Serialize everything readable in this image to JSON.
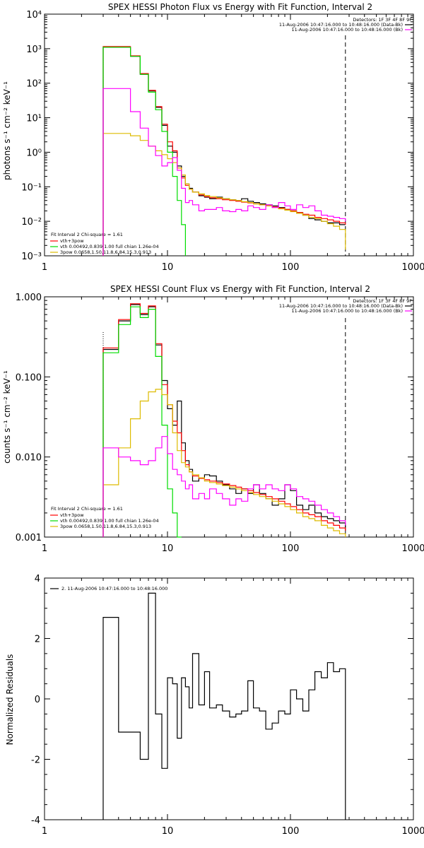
{
  "colors": {
    "data": "#000000",
    "total": "#ff0000",
    "thermal": "#00dd00",
    "power": "#ddbb00",
    "background": "#ff00ff"
  },
  "chart_data": [
    {
      "type": "line",
      "title": "SPEX HESSI Photon Flux vs Energy with Fit Function, Interval 2",
      "xlabel": "",
      "ylabel": "photons s⁻¹ cm⁻² keV⁻¹",
      "xscale": "log",
      "yscale": "log",
      "xlim": [
        1,
        1000
      ],
      "ylim": [
        0.001,
        10000
      ],
      "xticks": [
        "1",
        "10",
        "100",
        "1000"
      ],
      "yticks": [
        "10⁻³",
        "10⁻²",
        "10⁻¹",
        "10⁰",
        "10¹",
        "10²",
        "10³",
        "10⁴"
      ],
      "header": [
        "Detectors: 1F 3F 4F 8F 9F",
        "11-Aug-2006 10:47:16.000 to 10:48:16.000 (Data-Bk)",
        "11-Aug-2006 10:47:16.000 to 10:48:16.000 (Bk)"
      ],
      "legend": [
        "Fit Interval 2   Chi-square = 1.61",
        "vth+3pow",
        "vth 0.00492,0.839,1.00   full chian 1.26e-04",
        "3pow 0.0658,1.50,11.8,6.84,15.3,0.913"
      ],
      "vlines": [
        3,
        280
      ],
      "series": [
        {
          "name": "11-Aug-2006 10:47:16.000 to 10:48:16.000 (Data-Bk)",
          "color": "#000000",
          "step": true,
          "x": [
            3,
            4,
            5,
            6,
            7,
            8,
            9,
            10,
            11,
            12,
            13,
            14,
            15,
            16,
            18,
            20,
            22,
            25,
            28,
            32,
            36,
            40,
            45,
            50,
            56,
            63,
            71,
            80,
            90,
            100,
            112,
            126,
            141,
            158,
            178,
            200,
            224,
            251,
            280
          ],
          "y": [
            1100,
            1100,
            600,
            180,
            60,
            20,
            6,
            1.5,
            1.0,
            0.4,
            0.2,
            0.12,
            0.09,
            0.07,
            0.055,
            0.05,
            0.045,
            0.05,
            0.045,
            0.042,
            0.04,
            0.045,
            0.038,
            0.035,
            0.032,
            0.03,
            0.028,
            0.025,
            0.022,
            0.02,
            0.018,
            0.015,
            0.012,
            0.011,
            0.01,
            0.009,
            0.009,
            0.008,
            0.008
          ]
        },
        {
          "name": "vth+3pow",
          "color": "#ff0000",
          "step": true,
          "x": [
            3,
            4,
            5,
            6,
            7,
            8,
            9,
            10,
            11,
            12,
            13,
            14,
            15,
            16,
            18,
            20,
            22,
            25,
            28,
            32,
            36,
            40,
            45,
            50,
            56,
            63,
            71,
            80,
            90,
            100,
            112,
            126,
            141,
            158,
            178,
            200,
            224,
            251,
            280
          ],
          "y": [
            1150,
            1150,
            620,
            190,
            62,
            21,
            6.5,
            2.0,
            1.1,
            0.35,
            0.18,
            0.11,
            0.085,
            0.07,
            0.058,
            0.052,
            0.048,
            0.045,
            0.042,
            0.04,
            0.038,
            0.036,
            0.034,
            0.032,
            0.03,
            0.028,
            0.026,
            0.024,
            0.022,
            0.02,
            0.018,
            0.016,
            0.015,
            0.013,
            0.012,
            0.011,
            0.01,
            0.009,
            0.008
          ]
        },
        {
          "name": "vth",
          "color": "#00dd00",
          "step": true,
          "x": [
            3,
            4,
            5,
            6,
            7,
            8,
            9,
            10,
            11,
            12,
            13,
            14
          ],
          "y": [
            1100,
            1100,
            600,
            180,
            55,
            17,
            4,
            1.0,
            0.2,
            0.04,
            0.008,
            0.001
          ]
        },
        {
          "name": "3pow",
          "color": "#ddbb00",
          "step": true,
          "x": [
            3,
            4,
            5,
            6,
            7,
            8,
            9,
            10,
            11,
            12,
            13,
            14,
            15,
            16,
            18,
            20,
            22,
            25,
            28,
            32,
            36,
            40,
            45,
            50,
            56,
            63,
            71,
            80,
            90,
            100,
            112,
            126,
            141,
            158,
            178,
            200,
            224,
            251,
            280
          ],
          "y": [
            3.5,
            3.5,
            3.0,
            2.2,
            1.5,
            1.1,
            0.85,
            0.65,
            0.5,
            0.35,
            0.22,
            0.12,
            0.085,
            0.07,
            0.062,
            0.056,
            0.052,
            0.048,
            0.045,
            0.042,
            0.04,
            0.037,
            0.035,
            0.032,
            0.03,
            0.028,
            0.025,
            0.023,
            0.021,
            0.019,
            0.017,
            0.015,
            0.013,
            0.012,
            0.01,
            0.0085,
            0.0072,
            0.0058,
            0.0015
          ]
        },
        {
          "name": "11-Aug-2006 10:47:16.000 to 10:48:16.000 (Bk)",
          "color": "#ff00ff",
          "step": true,
          "x": [
            3,
            4,
            5,
            6,
            7,
            8,
            9,
            10,
            11,
            12,
            13,
            14,
            15,
            16,
            18,
            20,
            22,
            25,
            28,
            32,
            36,
            40,
            45,
            50,
            56,
            63,
            71,
            80,
            90,
            100,
            112,
            126,
            141,
            158,
            178,
            200,
            224,
            251,
            280
          ],
          "y": [
            70,
            70,
            15,
            5,
            1.5,
            0.8,
            0.4,
            0.5,
            0.7,
            0.3,
            0.09,
            0.035,
            0.04,
            0.03,
            0.02,
            0.022,
            0.022,
            0.025,
            0.02,
            0.019,
            0.022,
            0.02,
            0.028,
            0.025,
            0.022,
            0.03,
            0.025,
            0.035,
            0.028,
            0.022,
            0.03,
            0.025,
            0.028,
            0.02,
            0.015,
            0.014,
            0.013,
            0.012,
            0.01
          ]
        }
      ]
    },
    {
      "type": "line",
      "title": "SPEX HESSI Count Flux vs Energy with Fit Function, Interval 2",
      "xlabel": "",
      "ylabel": "counts s⁻¹ cm⁻² keV⁻¹",
      "xscale": "log",
      "yscale": "log",
      "xlim": [
        1,
        1000
      ],
      "ylim": [
        0.001,
        1.0
      ],
      "xticks": [
        "1",
        "10",
        "100",
        "1000"
      ],
      "yticks": [
        "0.001",
        "0.010",
        "0.100",
        "1.000"
      ],
      "header": [
        "Detectors: 1F 3F 4F 8F 9F",
        "11-Aug-2006 10:47:16.000 to 10:48:16.000 (Data-Bk)",
        "11-Aug-2006 10:47:16.000 to 10:48:16.000 (Bk)"
      ],
      "legend": [
        "Fit Interval 2   Chi-square = 1.61",
        "vth+3pow",
        "vth 0.00492,0.839,1.00   full chian 1.26e-04",
        "3pow 0.0658,1.50,11.8,6.84,15.3,0.913"
      ],
      "vlines": [
        3,
        280
      ],
      "series": [
        {
          "name": "11-Aug-2006 10:47:16.000 to 10:48:16.000 (Data-Bk)",
          "color": "#000000",
          "step": true,
          "x": [
            3,
            4,
            5,
            6,
            7,
            8,
            9,
            10,
            11,
            12,
            13,
            14,
            15,
            16,
            18,
            20,
            22,
            25,
            28,
            32,
            36,
            40,
            45,
            50,
            56,
            63,
            71,
            80,
            90,
            100,
            112,
            126,
            141,
            158,
            178,
            200,
            224,
            251,
            280
          ],
          "y": [
            0.22,
            0.5,
            0.8,
            0.6,
            0.75,
            0.25,
            0.09,
            0.04,
            0.025,
            0.05,
            0.015,
            0.009,
            0.007,
            0.005,
            0.0055,
            0.006,
            0.0058,
            0.005,
            0.0045,
            0.004,
            0.0035,
            0.004,
            0.0035,
            0.0045,
            0.0035,
            0.003,
            0.0025,
            0.003,
            0.0045,
            0.0038,
            0.0025,
            0.0022,
            0.0025,
            0.002,
            0.0018,
            0.0017,
            0.0016,
            0.0015,
            0.0012
          ]
        },
        {
          "name": "vth+3pow",
          "color": "#ff0000",
          "step": true,
          "x": [
            3,
            4,
            5,
            6,
            7,
            8,
            9,
            10,
            11,
            12,
            13,
            14,
            15,
            16,
            18,
            20,
            22,
            25,
            28,
            32,
            36,
            40,
            45,
            50,
            56,
            63,
            71,
            80,
            90,
            100,
            112,
            126,
            141,
            158,
            178,
            200,
            224,
            251,
            280
          ],
          "y": [
            0.23,
            0.52,
            0.82,
            0.62,
            0.77,
            0.26,
            0.08,
            0.045,
            0.028,
            0.02,
            0.012,
            0.008,
            0.0065,
            0.0058,
            0.0054,
            0.0052,
            0.005,
            0.0048,
            0.0046,
            0.0044,
            0.0042,
            0.004,
            0.0038,
            0.0036,
            0.0034,
            0.0032,
            0.003,
            0.0028,
            0.0026,
            0.0024,
            0.0022,
            0.002,
            0.0019,
            0.0018,
            0.0016,
            0.0015,
            0.0014,
            0.0013,
            0.0012
          ]
        },
        {
          "name": "vth",
          "color": "#00dd00",
          "step": true,
          "x": [
            3,
            4,
            5,
            6,
            7,
            8,
            9,
            10,
            11,
            12,
            13
          ],
          "y": [
            0.2,
            0.45,
            0.75,
            0.55,
            0.7,
            0.18,
            0.025,
            0.004,
            0.002,
            0.001,
            0.001
          ]
        },
        {
          "name": "3pow",
          "color": "#ddbb00",
          "step": true,
          "x": [
            3,
            4,
            5,
            6,
            7,
            8,
            9,
            10,
            11,
            12,
            13,
            14,
            15,
            16,
            18,
            20,
            22,
            25,
            28,
            32,
            36,
            40,
            45,
            50,
            56,
            63,
            71,
            80,
            90,
            100,
            112,
            126,
            141,
            158,
            178,
            200,
            224,
            251,
            280
          ],
          "y": [
            0.0045,
            0.013,
            0.03,
            0.05,
            0.065,
            0.07,
            0.06,
            0.045,
            0.02,
            0.012,
            0.0085,
            0.0075,
            0.0065,
            0.006,
            0.0055,
            0.005,
            0.0048,
            0.0046,
            0.0044,
            0.0042,
            0.004,
            0.0038,
            0.0036,
            0.0034,
            0.0032,
            0.003,
            0.0028,
            0.0026,
            0.0024,
            0.0022,
            0.002,
            0.0018,
            0.0017,
            0.0016,
            0.0014,
            0.0013,
            0.0012,
            0.0011,
            0.001
          ]
        },
        {
          "name": "11-Aug-2006 10:47:16.000 to 10:48:16.000 (Bk)",
          "color": "#ff00ff",
          "step": true,
          "x": [
            3,
            4,
            5,
            6,
            7,
            8,
            9,
            10,
            11,
            12,
            13,
            14,
            15,
            16,
            18,
            20,
            22,
            25,
            28,
            32,
            36,
            40,
            45,
            50,
            56,
            63,
            71,
            80,
            90,
            100,
            112,
            126,
            141,
            158,
            178,
            200,
            224,
            251,
            280
          ],
          "y": [
            0.013,
            0.01,
            0.009,
            0.008,
            0.009,
            0.013,
            0.018,
            0.011,
            0.007,
            0.006,
            0.005,
            0.004,
            0.0045,
            0.003,
            0.0035,
            0.003,
            0.004,
            0.0035,
            0.003,
            0.0025,
            0.003,
            0.0028,
            0.004,
            0.0045,
            0.004,
            0.0045,
            0.004,
            0.0038,
            0.0045,
            0.004,
            0.0032,
            0.003,
            0.0028,
            0.0025,
            0.0022,
            0.002,
            0.0018,
            0.0016,
            0.0014
          ]
        }
      ]
    },
    {
      "type": "line",
      "title": "",
      "xlabel": "",
      "ylabel": "Normalized Residuals",
      "xscale": "log",
      "yscale": "linear",
      "xlim": [
        1,
        1000
      ],
      "ylim": [
        -4,
        4
      ],
      "xticks": [
        "1",
        "10",
        "100",
        "1000"
      ],
      "yticks": [
        "-4",
        "-2",
        "0",
        "2",
        "4"
      ],
      "legend": [
        "2. 11-Aug-2006 10:47:16.000 to 10:48:16.000"
      ],
      "series": [
        {
          "name": "2. 11-Aug-2006 10:47:16.000 to 10:48:16.000",
          "color": "#000000",
          "step": true,
          "x": [
            3,
            4,
            5,
            6,
            7,
            8,
            9,
            10,
            11,
            12,
            13,
            14,
            15,
            16,
            18,
            20,
            22,
            25,
            28,
            32,
            36,
            40,
            45,
            50,
            56,
            63,
            71,
            80,
            90,
            100,
            112,
            126,
            141,
            158,
            178,
            200,
            224,
            251,
            280
          ],
          "y": [
            2.7,
            -1.1,
            -1.1,
            -2.0,
            3.5,
            -0.5,
            -2.3,
            0.7,
            0.5,
            -1.3,
            0.7,
            0.4,
            -0.3,
            1.5,
            -0.2,
            0.9,
            -0.3,
            -0.2,
            -0.4,
            -0.6,
            -0.5,
            -0.4,
            0.6,
            -0.3,
            -0.4,
            -1.0,
            -0.8,
            -0.4,
            -0.5,
            0.3,
            0.0,
            -0.4,
            0.3,
            0.9,
            0.7,
            1.2,
            0.9,
            1.0,
            -4.0
          ]
        }
      ]
    }
  ]
}
